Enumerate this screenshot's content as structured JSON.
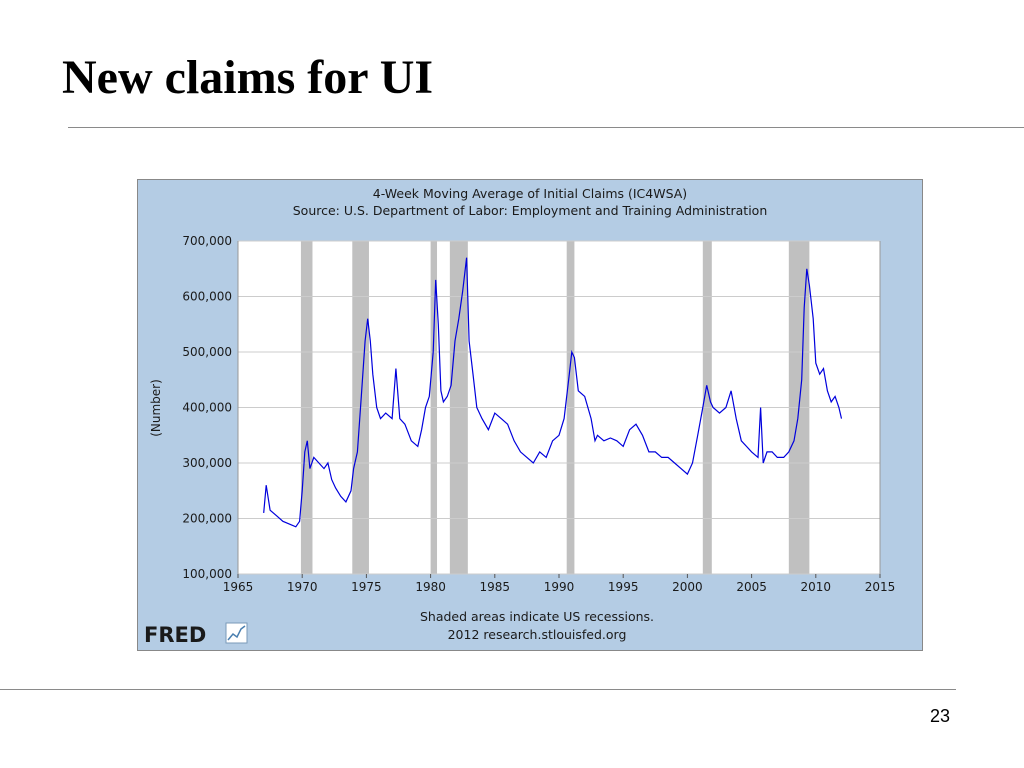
{
  "slide": {
    "title": "New claims for UI",
    "page_number": "23"
  },
  "fred_logo": "FRED",
  "colors": {
    "panel_bg": "#b4cce4",
    "plot_bg": "#ffffff",
    "line": "#0000dd",
    "recession": "#c0c0c0",
    "grid": "#cccccc"
  },
  "chart_data": {
    "type": "line",
    "title": "4-Week Moving Average of Initial Claims (IC4WSA)",
    "subtitle": "Source: U.S. Department of Labor: Employment and Training Administration",
    "ylabel": "(Number)",
    "xlabel": "",
    "xlim": [
      1965,
      2015
    ],
    "ylim": [
      100000,
      700000
    ],
    "x_ticks": [
      1965,
      1970,
      1975,
      1980,
      1985,
      1990,
      1995,
      2000,
      2005,
      2010,
      2015
    ],
    "y_ticks": [
      100000,
      200000,
      300000,
      400000,
      500000,
      600000,
      700000
    ],
    "y_tick_labels": [
      "100,000",
      "200,000",
      "300,000",
      "400,000",
      "500,000",
      "600,000",
      "700,000"
    ],
    "grid": true,
    "recessions": [
      [
        1969.9,
        1970.8
      ],
      [
        1973.9,
        1975.2
      ],
      [
        1980.0,
        1980.5
      ],
      [
        1981.5,
        1982.9
      ],
      [
        1990.6,
        1991.2
      ],
      [
        2001.2,
        2001.9
      ],
      [
        2007.9,
        2009.5
      ]
    ],
    "notes": [
      "Shaded areas indicate US recessions.",
      "2012 research.stlouisfed.org"
    ],
    "series": [
      {
        "x": [
          1967.0,
          1967.2,
          1967.5,
          1968.0,
          1968.5,
          1969.0,
          1969.5,
          1969.8,
          1970.0,
          1970.2,
          1970.4,
          1970.6,
          1970.9,
          1971.3,
          1971.7,
          1972.0,
          1972.3,
          1972.6,
          1973.0,
          1973.4,
          1973.8,
          1974.0,
          1974.3,
          1974.6,
          1974.9,
          1975.1,
          1975.3,
          1975.5,
          1975.8,
          1976.1,
          1976.5,
          1977.0,
          1977.3,
          1977.6,
          1978.0,
          1978.5,
          1979.0,
          1979.3,
          1979.6,
          1979.9,
          1980.2,
          1980.4,
          1980.6,
          1980.8,
          1981.0,
          1981.3,
          1981.6,
          1981.9,
          1982.2,
          1982.5,
          1982.8,
          1983.0,
          1983.3,
          1983.6,
          1984.0,
          1984.5,
          1985.0,
          1985.5,
          1986.0,
          1986.5,
          1987.0,
          1987.5,
          1988.0,
          1988.5,
          1989.0,
          1989.5,
          1990.0,
          1990.4,
          1990.8,
          1991.0,
          1991.2,
          1991.5,
          1992.0,
          1992.5,
          1992.8,
          1993.0,
          1993.5,
          1994.0,
          1994.5,
          1995.0,
          1995.5,
          1996.0,
          1996.5,
          1997.0,
          1997.5,
          1998.0,
          1998.5,
          1999.0,
          1999.5,
          2000.0,
          2000.4,
          2000.8,
          2001.2,
          2001.5,
          2001.8,
          2002.0,
          2002.5,
          2003.0,
          2003.4,
          2003.8,
          2004.2,
          2004.6,
          2005.0,
          2005.5,
          2005.7,
          2005.9,
          2006.2,
          2006.6,
          2007.0,
          2007.5,
          2007.9,
          2008.3,
          2008.6,
          2008.9,
          2009.1,
          2009.3,
          2009.5,
          2009.8,
          2010.0,
          2010.3,
          2010.6,
          2010.9,
          2011.2,
          2011.5,
          2011.8,
          2012.0
        ],
        "y": [
          210000,
          260000,
          215000,
          205000,
          195000,
          190000,
          185000,
          195000,
          250000,
          320000,
          340000,
          290000,
          310000,
          300000,
          290000,
          300000,
          270000,
          255000,
          240000,
          230000,
          250000,
          290000,
          320000,
          420000,
          520000,
          560000,
          520000,
          460000,
          400000,
          380000,
          390000,
          380000,
          470000,
          380000,
          370000,
          340000,
          330000,
          360000,
          400000,
          420000,
          500000,
          630000,
          550000,
          430000,
          410000,
          420000,
          440000,
          520000,
          560000,
          610000,
          670000,
          520000,
          460000,
          400000,
          380000,
          360000,
          390000,
          380000,
          370000,
          340000,
          320000,
          310000,
          300000,
          320000,
          310000,
          340000,
          350000,
          380000,
          460000,
          500000,
          490000,
          430000,
          420000,
          380000,
          340000,
          350000,
          340000,
          345000,
          340000,
          330000,
          360000,
          370000,
          350000,
          320000,
          320000,
          310000,
          310000,
          300000,
          290000,
          280000,
          300000,
          350000,
          400000,
          440000,
          410000,
          400000,
          390000,
          400000,
          430000,
          380000,
          340000,
          330000,
          320000,
          310000,
          400000,
          300000,
          320000,
          320000,
          310000,
          310000,
          320000,
          340000,
          380000,
          450000,
          580000,
          650000,
          620000,
          560000,
          480000,
          460000,
          470000,
          430000,
          410000,
          420000,
          400000,
          380000
        ]
      }
    ]
  }
}
